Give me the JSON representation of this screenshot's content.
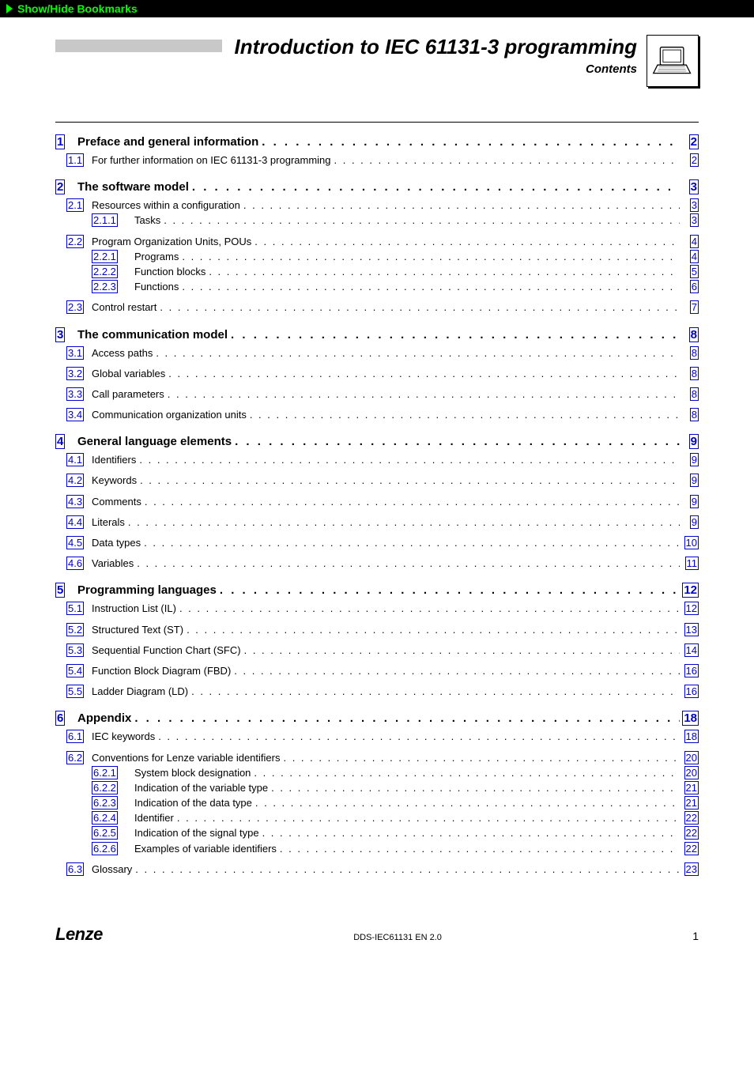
{
  "bookmark_label": "Show/Hide Bookmarks",
  "header": {
    "title": "Introduction to IEC 61131-3 programming",
    "subtitle": "Contents"
  },
  "toc": [
    {
      "level": 1,
      "num": "1",
      "title": "Preface and general information",
      "page": "2"
    },
    {
      "level": 2,
      "num": "1.1",
      "title": "For further information on IEC 61131-3 programming",
      "page": "2"
    },
    {
      "level": 1,
      "num": "2",
      "title": "The software model",
      "page": "3"
    },
    {
      "level": 2,
      "num": "2.1",
      "title": "Resources within a configuration",
      "page": "3"
    },
    {
      "level": 3,
      "num": "2.1.1",
      "title": "Tasks",
      "page": "3"
    },
    {
      "level": 2,
      "num": "2.2",
      "title": "Program Organization Units, POUs",
      "page": "4",
      "group_gap": true
    },
    {
      "level": 3,
      "num": "2.2.1",
      "title": "Programs",
      "page": "4"
    },
    {
      "level": 3,
      "num": "2.2.2",
      "title": "Function blocks",
      "page": "5"
    },
    {
      "level": 3,
      "num": "2.2.3",
      "title": "Functions",
      "page": "6"
    },
    {
      "level": 2,
      "num": "2.3",
      "title": "Control restart",
      "page": "7",
      "group_gap": true
    },
    {
      "level": 1,
      "num": "3",
      "title": "The communication model",
      "page": "8"
    },
    {
      "level": 2,
      "num": "3.1",
      "title": "Access paths",
      "page": "8"
    },
    {
      "level": 2,
      "num": "3.2",
      "title": "Global variables",
      "page": "8",
      "group_gap": true
    },
    {
      "level": 2,
      "num": "3.3",
      "title": "Call parameters",
      "page": "8",
      "group_gap": true
    },
    {
      "level": 2,
      "num": "3.4",
      "title": "Communication organization units",
      "page": "8",
      "group_gap": true
    },
    {
      "level": 1,
      "num": "4",
      "title": "General language elements",
      "page": "9"
    },
    {
      "level": 2,
      "num": "4.1",
      "title": "Identifiers",
      "page": "9"
    },
    {
      "level": 2,
      "num": "4.2",
      "title": "Keywords",
      "page": "9",
      "group_gap": true
    },
    {
      "level": 2,
      "num": "4.3",
      "title": "Comments",
      "page": "9",
      "group_gap": true
    },
    {
      "level": 2,
      "num": "4.4",
      "title": "Literals",
      "page": "9",
      "group_gap": true
    },
    {
      "level": 2,
      "num": "4.5",
      "title": "Data types",
      "page": "10",
      "group_gap": true
    },
    {
      "level": 2,
      "num": "4.6",
      "title": "Variables",
      "page": "11",
      "group_gap": true
    },
    {
      "level": 1,
      "num": "5",
      "title": "Programming languages",
      "page": "12"
    },
    {
      "level": 2,
      "num": "5.1",
      "title": "Instruction List (IL)",
      "page": "12"
    },
    {
      "level": 2,
      "num": "5.2",
      "title": "Structured Text (ST)",
      "page": "13",
      "group_gap": true
    },
    {
      "level": 2,
      "num": "5.3",
      "title": "Sequential Function Chart (SFC)",
      "page": "14",
      "group_gap": true
    },
    {
      "level": 2,
      "num": "5.4",
      "title": "Function Block Diagram (FBD)",
      "page": "16",
      "group_gap": true
    },
    {
      "level": 2,
      "num": "5.5",
      "title": "Ladder Diagram (LD)",
      "page": "16",
      "group_gap": true
    },
    {
      "level": 1,
      "num": "6",
      "title": "Appendix",
      "page": "18"
    },
    {
      "level": 2,
      "num": "6.1",
      "title": "IEC keywords",
      "page": "18"
    },
    {
      "level": 2,
      "num": "6.2",
      "title": "Conventions for Lenze variable identifiers",
      "page": "20",
      "group_gap": true
    },
    {
      "level": 3,
      "num": "6.2.1",
      "title": "System block designation",
      "page": "20"
    },
    {
      "level": 3,
      "num": "6.2.2",
      "title": "Indication of the variable type",
      "page": "21"
    },
    {
      "level": 3,
      "num": "6.2.3",
      "title": "Indication of the data type",
      "page": "21"
    },
    {
      "level": 3,
      "num": "6.2.4",
      "title": "Identifier",
      "page": "22"
    },
    {
      "level": 3,
      "num": "6.2.5",
      "title": "Indication of the signal type",
      "page": "22"
    },
    {
      "level": 3,
      "num": "6.2.6",
      "title": "Examples of variable identifiers",
      "page": "22"
    },
    {
      "level": 2,
      "num": "6.3",
      "title": "Glossary",
      "page": "23",
      "group_gap": true
    }
  ],
  "footer": {
    "brand": "Lenze",
    "code": "DDS-IEC61131 EN 2.0",
    "page": "1"
  },
  "colors": {
    "link": "#0000cc",
    "bookmark_green": "#00ff00",
    "gray_bar": "#c8c8c8"
  }
}
